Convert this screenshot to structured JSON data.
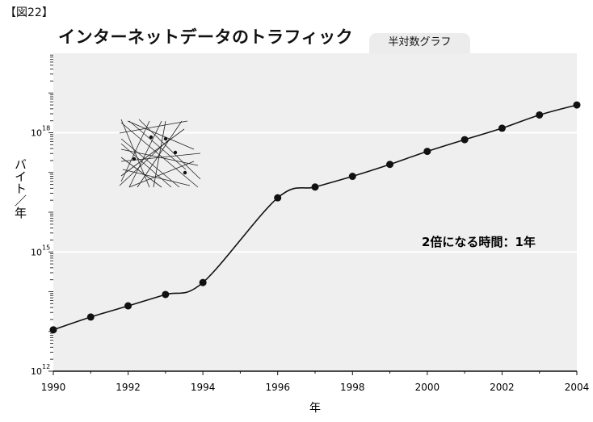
{
  "figure_label": "【図22】",
  "title": "インターネットデータのトラフィック",
  "scale_tab": "半対数グラフ",
  "annotation": "2倍になる時間：1年",
  "chart_data": {
    "type": "line",
    "title": "インターネットデータのトラフィック",
    "subtitle": "半対数グラフ",
    "xlabel": "年",
    "ylabel": "バイト／年",
    "yscale": "log",
    "xlim": [
      1990,
      2004
    ],
    "ylim": [
      1000000000000.0,
      1e+20
    ],
    "x_ticks": [
      1990,
      1992,
      1994,
      1996,
      1998,
      2000,
      2002,
      2004
    ],
    "y_ticks": [
      {
        "base": "10",
        "exp": "12",
        "value": 1000000000000.0
      },
      {
        "base": "10",
        "exp": "15",
        "value": 1000000000000000.0
      },
      {
        "base": "10",
        "exp": "18",
        "value": 1e+18
      }
    ],
    "grid": "horizontal at labeled decades",
    "series": [
      {
        "x": [
          1990,
          1991,
          1992,
          1993,
          1994,
          1996,
          1997,
          1998,
          1999,
          2000,
          2001,
          2002,
          2003,
          2004
        ],
        "y": [
          11000000000000.0,
          23000000000000.0,
          44000000000000.0,
          85000000000000.0,
          170000000000000.0,
          2.3e+16,
          4.3e+16,
          8e+16,
          1.6e+17,
          3.4e+17,
          6.7e+17,
          1.3e+18,
          2.8e+18,
          5e+18
        ]
      }
    ],
    "annotations": [
      "2倍になる時間：1年"
    ],
    "colors": {
      "plot_bg": "#efefef",
      "line": "#111111",
      "marker": "#111111",
      "grid": "#ffffff"
    }
  }
}
